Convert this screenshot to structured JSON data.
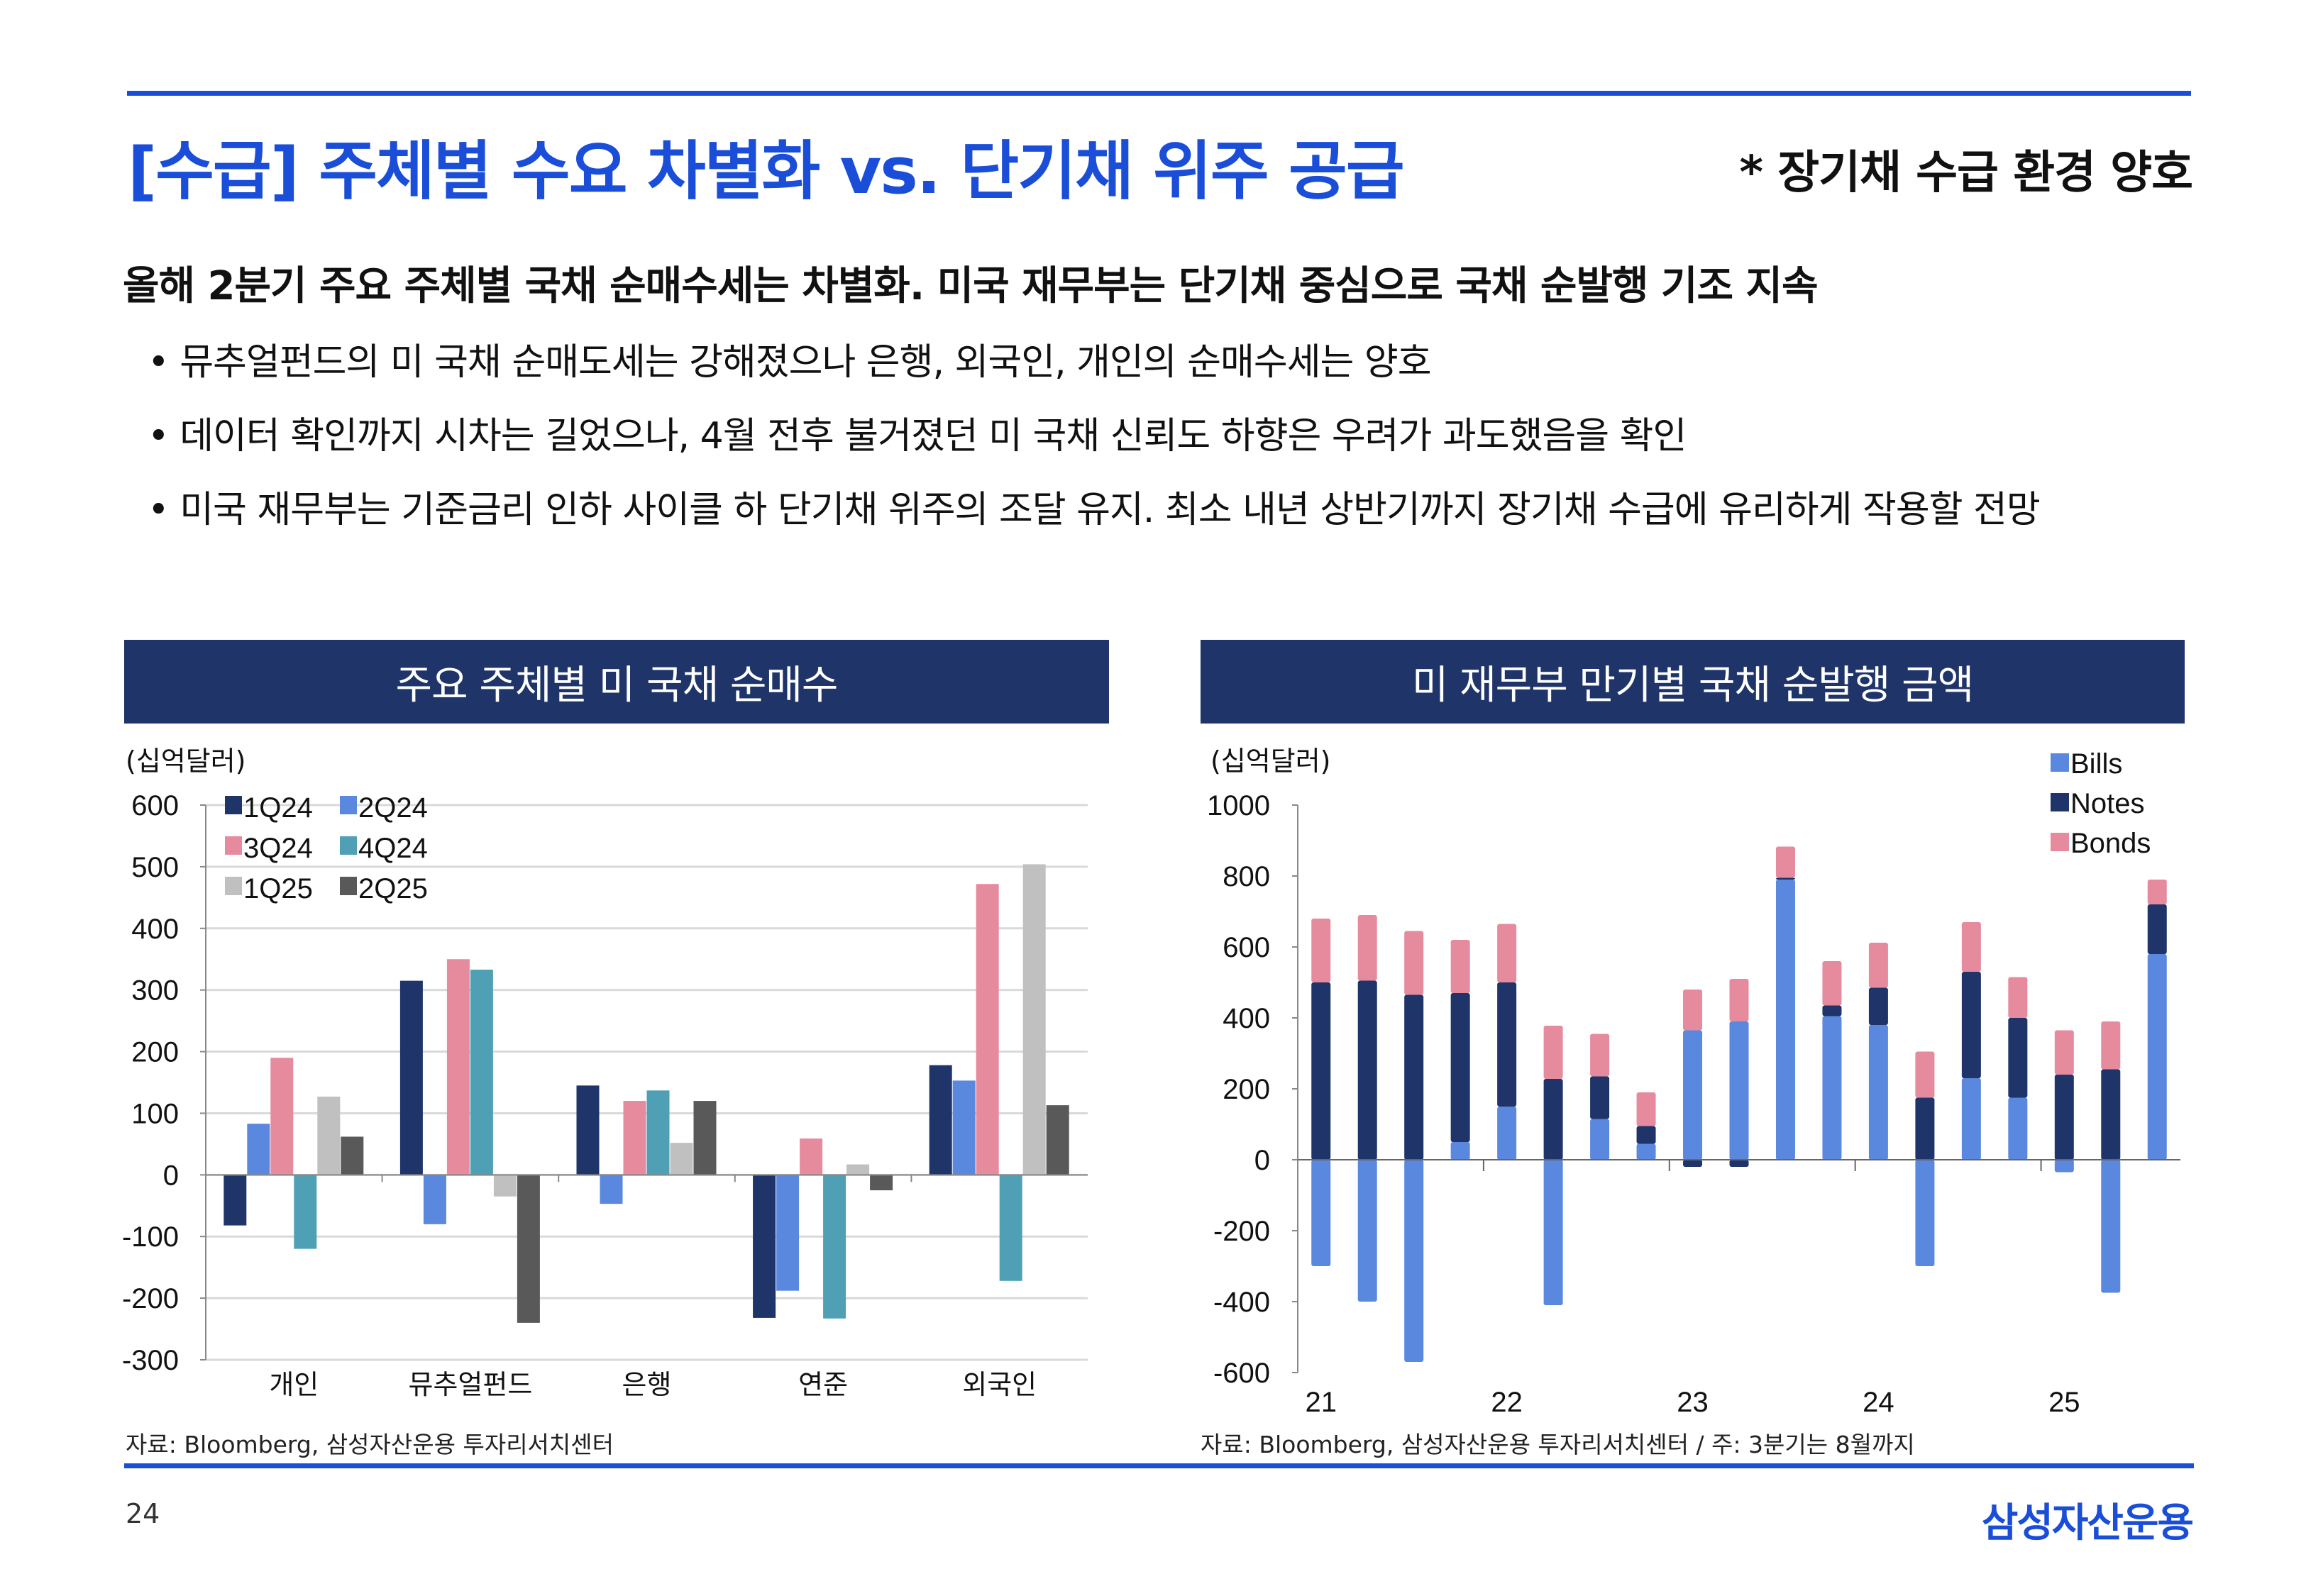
{
  "header": {
    "title": "[수급] 주체별 수요 차별화 vs. 단기채 위주 공급",
    "note": "* 장기채 수급 환경 양호"
  },
  "summary": {
    "headline": "올해 2분기 주요 주체별 국채 순매수세는 차별화. 미국 재무부는 단기채 중심으로 국채 순발행 기조 지속",
    "bullets": [
      "뮤추얼펀드의 미 국채 순매도세는 강해졌으나 은행, 외국인, 개인의 순매수세는 양호",
      "데이터 확인까지 시차는 길었으나, 4월 전후 불거졌던 미 국채 신뢰도 하향은 우려가 과도했음을 확인",
      "미국 재무부는 기준금리 인하 사이클 하 단기채 위주의 조달 유지. 최소 내년 상반기까지 장기채 수급에 유리하게 작용할 전망"
    ]
  },
  "footer": {
    "page": "24",
    "logo": "삼성자산운용"
  },
  "chart_data": [
    {
      "type": "bar",
      "title": "주요 주체별 미 국채 순매수",
      "unit": "(십억달러)",
      "source": "자료: Bloomberg, 삼성자산운용 투자리서치센터",
      "categories": [
        "개인",
        "뮤추얼펀드",
        "은행",
        "연준",
        "외국인"
      ],
      "ylim": [
        -300,
        600
      ],
      "yticks": [
        600,
        500,
        400,
        300,
        200,
        100,
        0,
        -100,
        -200,
        -300
      ],
      "grid": true,
      "legend": "top-left",
      "series": [
        {
          "name": "1Q24",
          "color": "#1f3468",
          "values": [
            -82,
            315,
            145,
            -232,
            178
          ]
        },
        {
          "name": "2Q24",
          "color": "#5a88de",
          "values": [
            83,
            -80,
            -47,
            -188,
            153
          ]
        },
        {
          "name": "3Q24",
          "color": "#e68a9e",
          "values": [
            190,
            350,
            120,
            59,
            472
          ]
        },
        {
          "name": "4Q24",
          "color": "#4fa0b4",
          "values": [
            -120,
            333,
            137,
            -233,
            -172
          ]
        },
        {
          "name": "1Q25",
          "color": "#c0c0c0",
          "values": [
            127,
            -35,
            52,
            17,
            504
          ]
        },
        {
          "name": "2Q25",
          "color": "#595959",
          "values": [
            62,
            -240,
            120,
            -25,
            113
          ]
        }
      ]
    },
    {
      "type": "stacked-bar",
      "title": "미 재무부 만기별 국채 순발행 금액",
      "unit": "(십억달러)",
      "source": "자료: Bloomberg, 삼성자산운용 투자리서치센터 / 주: 3분기는 8월까지",
      "x": [
        "21Q1",
        "21Q2",
        "21Q3",
        "21Q4",
        "22Q1",
        "22Q2",
        "22Q3",
        "22Q4",
        "23Q1",
        "23Q2",
        "23Q3",
        "23Q4",
        "24Q1",
        "24Q2",
        "24Q3",
        "24Q4",
        "25Q1",
        "25Q2",
        "25Q3"
      ],
      "xtick_labels": [
        {
          "index": 0,
          "label": "21"
        },
        {
          "index": 4,
          "label": "22"
        },
        {
          "index": 8,
          "label": "23"
        },
        {
          "index": 12,
          "label": "24"
        },
        {
          "index": 16,
          "label": "25"
        }
      ],
      "ylim": [
        -600,
        1000
      ],
      "yticks": [
        1000,
        800,
        600,
        400,
        200,
        0,
        -200,
        -400,
        -600
      ],
      "grid": false,
      "legend": "top-right",
      "series": [
        {
          "name": "Bills",
          "color": "#5a88de",
          "values": [
            -300,
            -400,
            -570,
            50,
            150,
            -410,
            115,
            45,
            365,
            390,
            790,
            405,
            380,
            -300,
            230,
            175,
            -35,
            -375,
            580
          ]
        },
        {
          "name": "Notes",
          "color": "#1f3468",
          "values": [
            500,
            505,
            465,
            420,
            350,
            228,
            120,
            50,
            -20,
            -20,
            5,
            30,
            105,
            175,
            300,
            225,
            240,
            255,
            140
          ]
        },
        {
          "name": "Bonds",
          "color": "#e68a9e",
          "values": [
            180,
            185,
            180,
            150,
            165,
            150,
            120,
            95,
            115,
            120,
            88,
            125,
            127,
            130,
            140,
            115,
            125,
            135,
            70
          ]
        }
      ]
    }
  ]
}
